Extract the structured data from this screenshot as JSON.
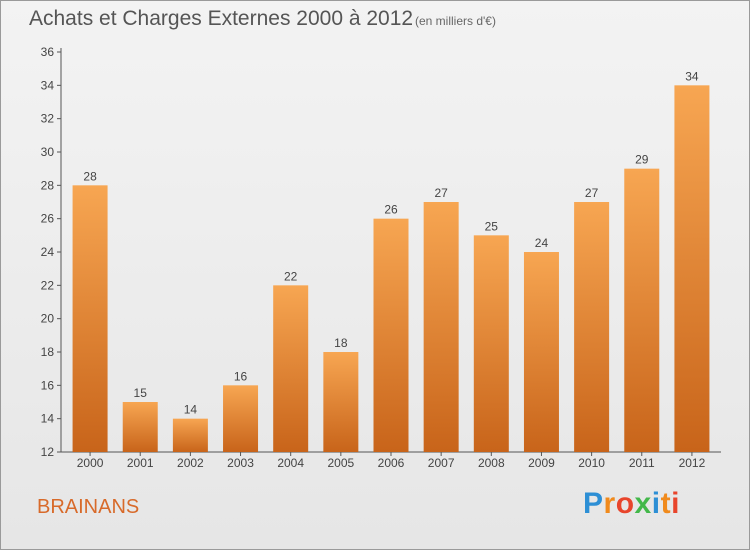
{
  "header": {
    "title": "Achats et Charges Externes 2000 à 2012",
    "unit": "(en milliers d'€)"
  },
  "footer": {
    "place": "BRAINANS",
    "logo": "Proxiti"
  },
  "colors": {
    "bar_light": "#f7a652",
    "bar_dark": "#c8641a",
    "place_text": "#d86a2a"
  },
  "chart_data": {
    "type": "bar",
    "title": "Achats et Charges Externes 2000 à 2012",
    "categories": [
      "2000",
      "2001",
      "2002",
      "2003",
      "2004",
      "2005",
      "2006",
      "2007",
      "2008",
      "2009",
      "2010",
      "2011",
      "2012"
    ],
    "values": [
      28,
      15,
      14,
      16,
      22,
      18,
      26,
      27,
      25,
      24,
      27,
      29,
      34
    ],
    "ylim": [
      12,
      36
    ],
    "yticks": [
      12,
      14,
      16,
      18,
      20,
      22,
      24,
      26,
      28,
      30,
      32,
      34,
      36
    ],
    "grid": false,
    "data_labels": true
  }
}
